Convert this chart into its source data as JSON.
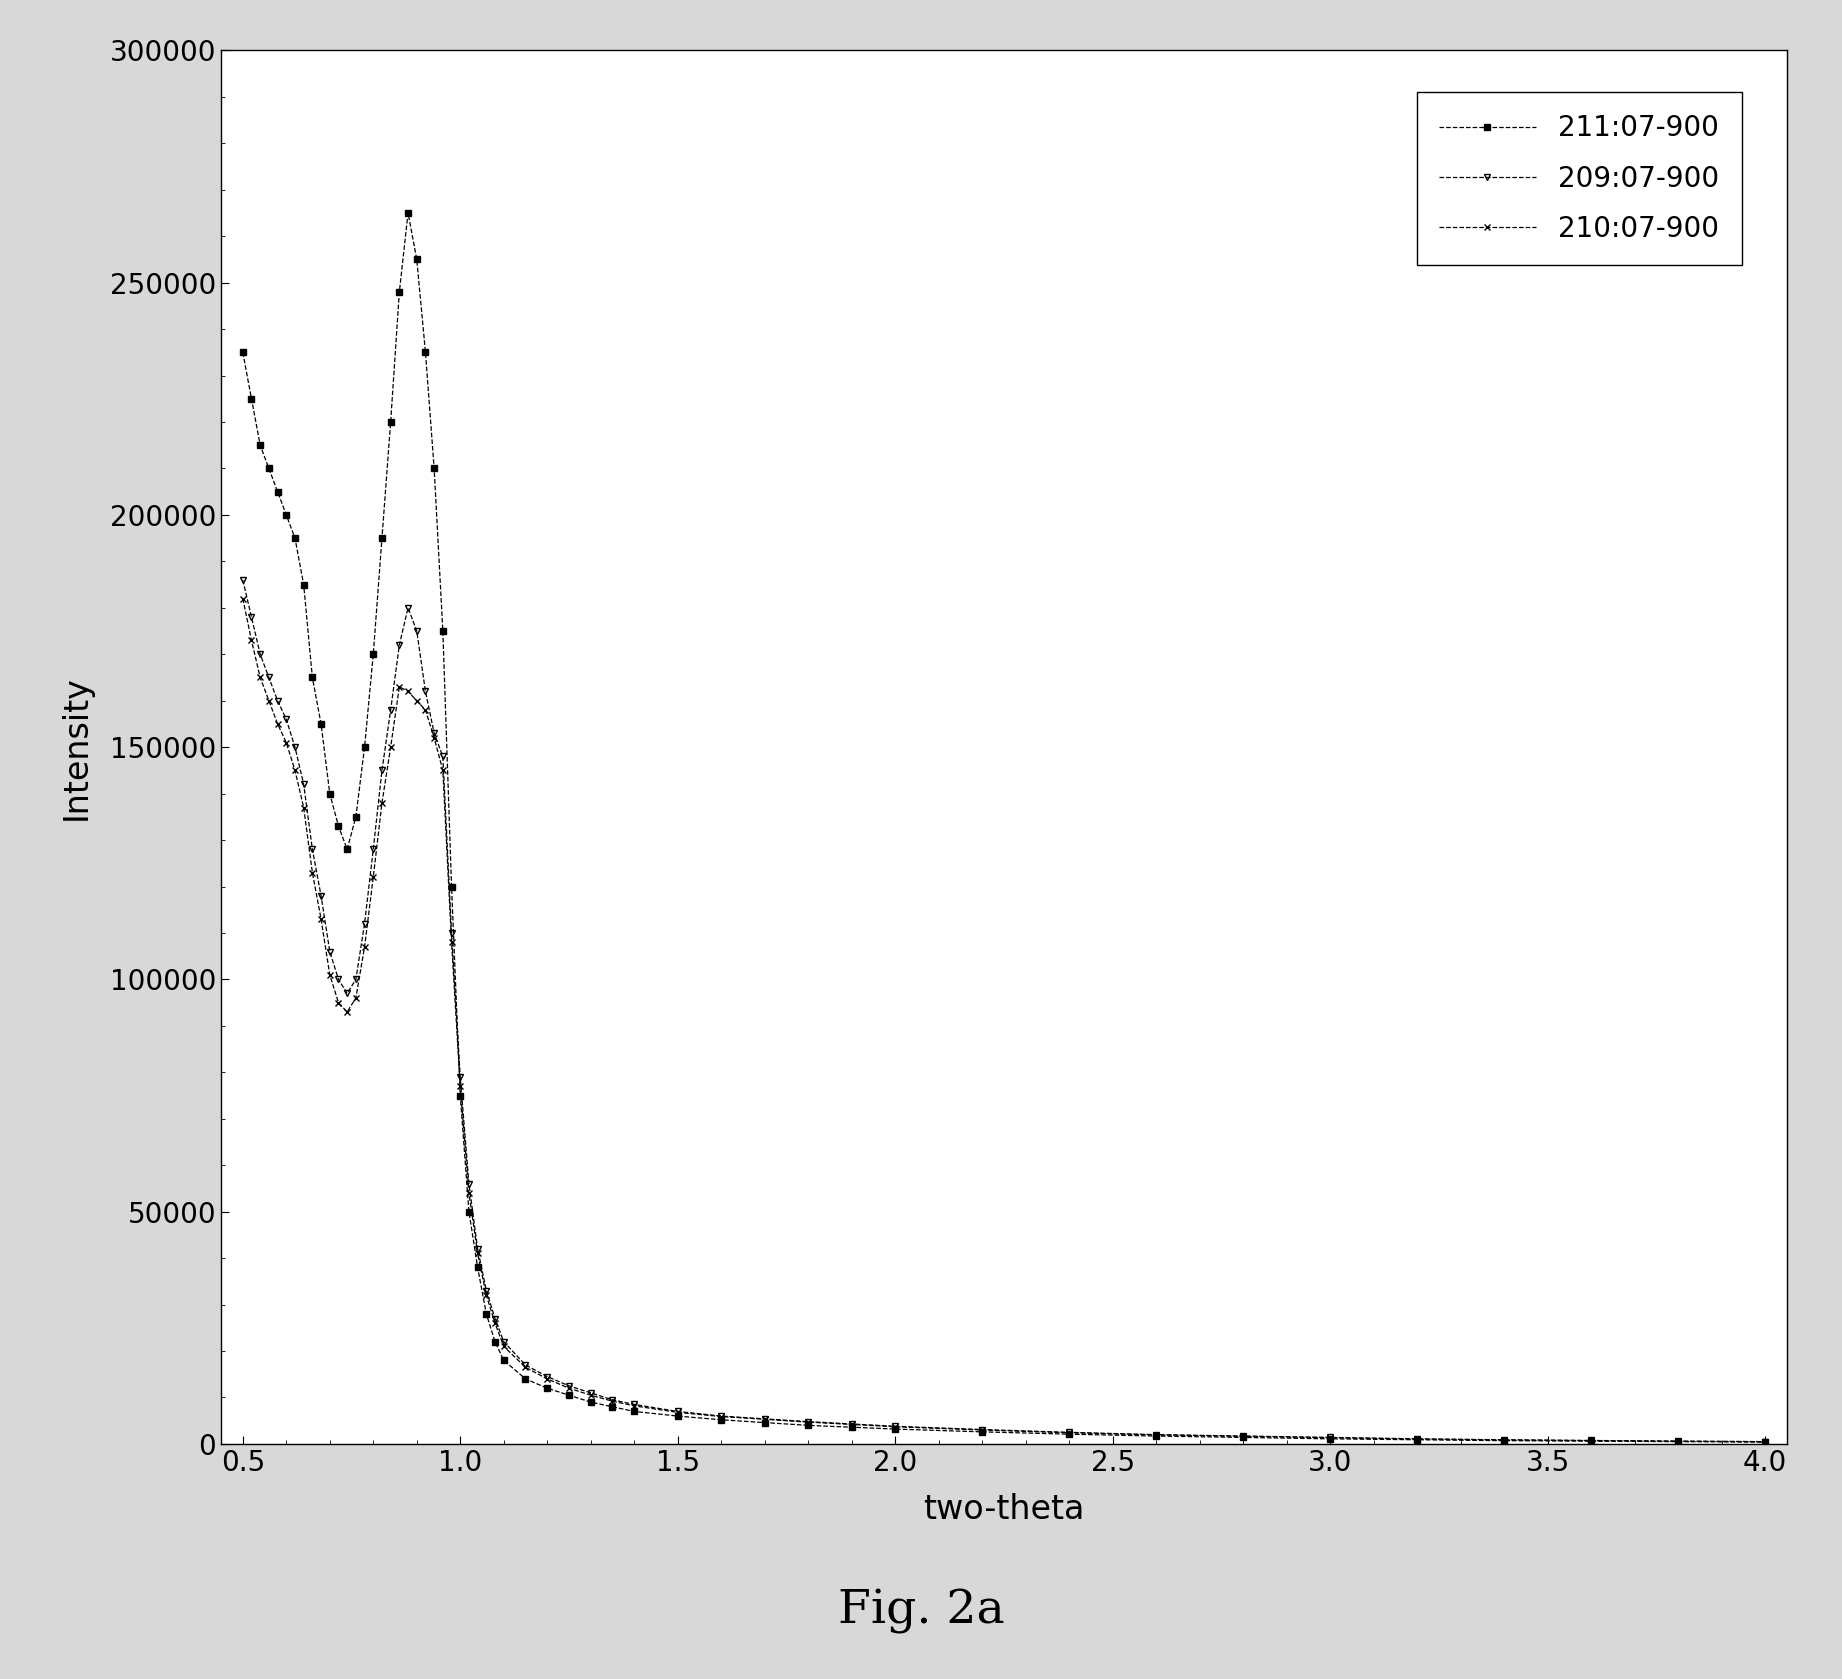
{
  "series": [
    {
      "label": "211:07-900",
      "color": "#000000",
      "linestyle": "--",
      "marker": "s",
      "markersize": 4,
      "x": [
        0.5,
        0.52,
        0.54,
        0.56,
        0.58,
        0.6,
        0.62,
        0.64,
        0.66,
        0.68,
        0.7,
        0.72,
        0.74,
        0.76,
        0.78,
        0.8,
        0.82,
        0.84,
        0.86,
        0.88,
        0.9,
        0.92,
        0.94,
        0.96,
        0.98,
        1.0,
        1.02,
        1.04,
        1.06,
        1.08,
        1.1,
        1.15,
        1.2,
        1.25,
        1.3,
        1.35,
        1.4,
        1.5,
        1.6,
        1.7,
        1.8,
        1.9,
        2.0,
        2.2,
        2.4,
        2.6,
        2.8,
        3.0,
        3.2,
        3.4,
        3.6,
        3.8,
        4.0
      ],
      "y": [
        235000,
        225000,
        215000,
        210000,
        205000,
        200000,
        195000,
        185000,
        165000,
        155000,
        140000,
        133000,
        128000,
        135000,
        150000,
        170000,
        195000,
        220000,
        248000,
        265000,
        255000,
        235000,
        210000,
        175000,
        120000,
        75000,
        50000,
        38000,
        28000,
        22000,
        18000,
        14000,
        12000,
        10500,
        9000,
        8000,
        7000,
        6000,
        5200,
        4600,
        4000,
        3600,
        3200,
        2600,
        2100,
        1700,
        1400,
        1100,
        900,
        700,
        600,
        500,
        400
      ]
    },
    {
      "label": "209:07-900",
      "color": "#000000",
      "linestyle": "--",
      "marker": "v",
      "markersize": 5,
      "x": [
        0.5,
        0.52,
        0.54,
        0.56,
        0.58,
        0.6,
        0.62,
        0.64,
        0.66,
        0.68,
        0.7,
        0.72,
        0.74,
        0.76,
        0.78,
        0.8,
        0.82,
        0.84,
        0.86,
        0.88,
        0.9,
        0.92,
        0.94,
        0.96,
        0.98,
        1.0,
        1.02,
        1.04,
        1.06,
        1.08,
        1.1,
        1.15,
        1.2,
        1.25,
        1.3,
        1.35,
        1.4,
        1.5,
        1.6,
        1.7,
        1.8,
        1.9,
        2.0,
        2.2,
        2.4,
        2.6,
        2.8,
        3.0,
        3.2,
        3.4,
        3.6,
        3.8,
        4.0
      ],
      "y": [
        186000,
        178000,
        170000,
        165000,
        160000,
        156000,
        150000,
        142000,
        128000,
        118000,
        106000,
        100000,
        97000,
        100000,
        112000,
        128000,
        145000,
        158000,
        172000,
        180000,
        175000,
        162000,
        153000,
        148000,
        110000,
        79000,
        56000,
        42000,
        33000,
        27000,
        22000,
        17000,
        14500,
        12500,
        11000,
        9500,
        8500,
        7000,
        6000,
        5400,
        4800,
        4300,
        3800,
        3100,
        2500,
        2000,
        1700,
        1400,
        1100,
        900,
        750,
        600,
        500
      ]
    },
    {
      "label": "210:07-900",
      "color": "#000000",
      "linestyle": "--",
      "marker": "x",
      "markersize": 5,
      "x": [
        0.5,
        0.52,
        0.54,
        0.56,
        0.58,
        0.6,
        0.62,
        0.64,
        0.66,
        0.68,
        0.7,
        0.72,
        0.74,
        0.76,
        0.78,
        0.8,
        0.82,
        0.84,
        0.86,
        0.88,
        0.9,
        0.92,
        0.94,
        0.96,
        0.98,
        1.0,
        1.02,
        1.04,
        1.06,
        1.08,
        1.1,
        1.15,
        1.2,
        1.25,
        1.3,
        1.35,
        1.4,
        1.5,
        1.6,
        1.7,
        1.8,
        1.9,
        2.0,
        2.2,
        2.4,
        2.6,
        2.8,
        3.0,
        3.2,
        3.4,
        3.6,
        3.8,
        4.0
      ],
      "y": [
        182000,
        173000,
        165000,
        160000,
        155000,
        151000,
        145000,
        137000,
        123000,
        113000,
        101000,
        95000,
        93000,
        96000,
        107000,
        122000,
        138000,
        150000,
        163000,
        162000,
        160000,
        158000,
        152000,
        145000,
        108000,
        77000,
        54000,
        41000,
        32000,
        26000,
        21000,
        16500,
        14000,
        12000,
        10500,
        9200,
        8200,
        6800,
        5900,
        5300,
        4700,
        4200,
        3700,
        3000,
        2400,
        1950,
        1650,
        1350,
        1050,
        850,
        700,
        580,
        480
      ]
    }
  ],
  "xlabel": "two-theta",
  "ylabel": "Intensity",
  "xlim": [
    0.45,
    4.05
  ],
  "ylim": [
    0,
    300000
  ],
  "xticks": [
    0.5,
    1.0,
    1.5,
    2.0,
    2.5,
    3.0,
    3.5,
    4.0
  ],
  "yticks": [
    0,
    50000,
    100000,
    150000,
    200000,
    250000,
    300000
  ],
  "caption": "Fig. 2a",
  "ax_background_color": "#ffffff",
  "fig_background_color": "#d8d8d8",
  "legend_loc": "upper right"
}
